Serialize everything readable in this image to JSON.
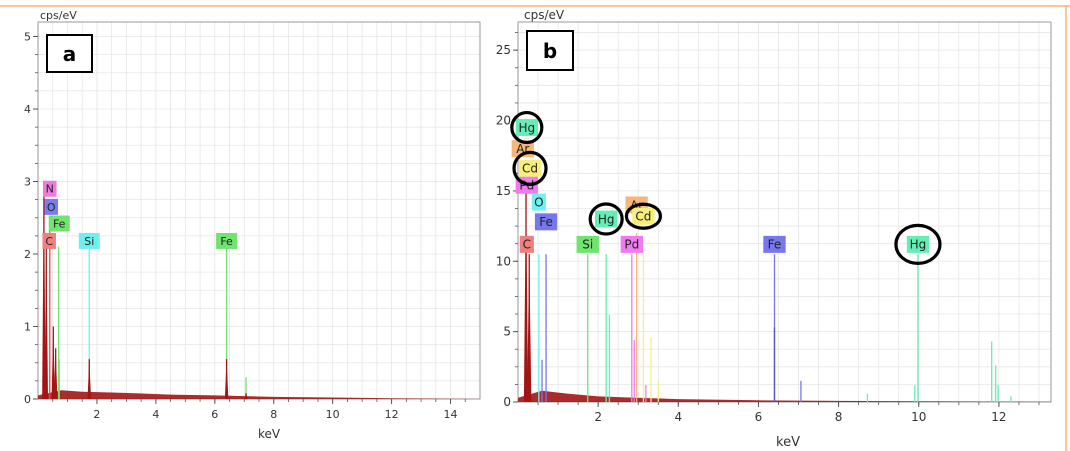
{
  "colors": {
    "frame": "#f5a35a",
    "grid": "#e6e6e6",
    "axis": "#555555",
    "fill": "#a31515",
    "C": "#f08080",
    "N": "#f07ae0",
    "O": "#7b7cf0",
    "Fe": "#6fe46f",
    "Fe_b": "#7676ee",
    "Si": "#6ff0f0",
    "Si_b": "#6fe46f",
    "O_b": "#70f0f0",
    "Hg": "#66eeb5",
    "Cd": "#f8ef7a",
    "Pd": "#f07af0",
    "Ar": "#f5b77a"
  },
  "chart_data": [
    {
      "type": "line",
      "panel": "a",
      "ylabel": "cps/eV",
      "xlabel": "keV",
      "xlim": [
        0,
        15
      ],
      "ylim": [
        0,
        5.2
      ],
      "x_ticks": [
        "2",
        "4",
        "6",
        "8",
        "10",
        "12",
        "14"
      ],
      "x_tick_values": [
        2,
        4,
        6,
        8,
        10,
        12,
        14
      ],
      "y_ticks": [
        "0",
        "1",
        "2",
        "3",
        "4",
        "5"
      ],
      "y_tick_values": [
        0,
        1,
        2,
        3,
        4,
        5
      ],
      "grid": true,
      "peaks": [
        {
          "x": 0.2,
          "y": 3.0,
          "color": "#a31515"
        },
        {
          "x": 0.28,
          "y": 2.2,
          "color": "#a31515"
        },
        {
          "x": 0.4,
          "y": 2.4,
          "color": "#ee4444"
        },
        {
          "x": 0.52,
          "y": 1.0,
          "color": "#a31515"
        },
        {
          "x": 0.6,
          "y": 0.7,
          "color": "#a31515"
        },
        {
          "x": 0.7,
          "y": 2.1,
          "color": "#6fe46f"
        },
        {
          "x": 0.72,
          "y": 0.55,
          "color": "#6fe46f"
        },
        {
          "x": 1.74,
          "y": 2.15,
          "color": "#6ff0f0"
        },
        {
          "x": 1.74,
          "y": 0.55,
          "color": "#a31515"
        },
        {
          "x": 6.4,
          "y": 2.2,
          "color": "#6fe46f"
        },
        {
          "x": 6.4,
          "y": 0.55,
          "color": "#a31515"
        },
        {
          "x": 7.06,
          "y": 0.3,
          "color": "#6fe46f"
        },
        {
          "x": 7.06,
          "y": 0.08,
          "color": "#a31515"
        }
      ],
      "background": [
        [
          0,
          0.05
        ],
        [
          0.8,
          0.12
        ],
        [
          1.5,
          0.1
        ],
        [
          2.5,
          0.09
        ],
        [
          3.3,
          0.08
        ],
        [
          4.5,
          0.06
        ],
        [
          6,
          0.05
        ],
        [
          8,
          0.03
        ],
        [
          10,
          0.02
        ],
        [
          12,
          0.01
        ],
        [
          15,
          0.0
        ]
      ],
      "element_labels": [
        {
          "text": "N",
          "x": 0.4,
          "y": 2.9,
          "color": "#f07ae0"
        },
        {
          "text": "O",
          "x": 0.45,
          "y": 2.65,
          "color": "#7b7cf0"
        },
        {
          "text": "Fe",
          "x": 0.72,
          "y": 2.42,
          "color": "#6fe46f"
        },
        {
          "text": "C",
          "x": 0.38,
          "y": 2.18,
          "color": "#f08080"
        },
        {
          "text": "Si",
          "x": 1.74,
          "y": 2.18,
          "color": "#6ff0f0"
        },
        {
          "text": "Fe",
          "x": 6.4,
          "y": 2.18,
          "color": "#6fe46f"
        }
      ]
    },
    {
      "type": "line",
      "panel": "b",
      "ylabel": "cps/eV",
      "xlabel": "keV",
      "xlim": [
        0,
        13.3
      ],
      "ylim": [
        0,
        27
      ],
      "x_ticks": [
        "2",
        "4",
        "6",
        "8",
        "10",
        "12"
      ],
      "x_tick_values": [
        2,
        4,
        6,
        8,
        10,
        12
      ],
      "y_ticks": [
        "0",
        "5",
        "10",
        "15",
        "20",
        "25"
      ],
      "y_tick_values": [
        0,
        5,
        10,
        15,
        20,
        25
      ],
      "grid": true,
      "peaks": [
        {
          "x": 0.2,
          "y": 15.5,
          "color": "#a31515"
        },
        {
          "x": 0.28,
          "y": 10.5,
          "color": "#a31515"
        },
        {
          "x": 0.52,
          "y": 10.5,
          "color": "#70f0f0"
        },
        {
          "x": 0.6,
          "y": 3.0,
          "color": "#7676ee"
        },
        {
          "x": 0.7,
          "y": 10.5,
          "color": "#7676ee"
        },
        {
          "x": 1.74,
          "y": 10.5,
          "color": "#6fe46f"
        },
        {
          "x": 2.2,
          "y": 10.5,
          "color": "#66eeb5"
        },
        {
          "x": 2.28,
          "y": 6.2,
          "color": "#66eeb5"
        },
        {
          "x": 2.84,
          "y": 10.5,
          "color": "#f07af0"
        },
        {
          "x": 2.9,
          "y": 4.4,
          "color": "#f07af0"
        },
        {
          "x": 2.96,
          "y": 12.0,
          "color": "#f5b77a"
        },
        {
          "x": 3.13,
          "y": 10.8,
          "color": "#f8ef7a"
        },
        {
          "x": 3.19,
          "y": 1.2,
          "color": "#f07af0"
        },
        {
          "x": 3.32,
          "y": 4.6,
          "color": "#f8ef7a"
        },
        {
          "x": 3.5,
          "y": 1.5,
          "color": "#f8ef7a"
        },
        {
          "x": 6.4,
          "y": 10.5,
          "color": "#7676ee"
        },
        {
          "x": 6.4,
          "y": 5.3,
          "color": "#5555cc"
        },
        {
          "x": 7.06,
          "y": 1.5,
          "color": "#7676ee"
        },
        {
          "x": 8.72,
          "y": 0.6,
          "color": "#66eeb5"
        },
        {
          "x": 9.98,
          "y": 10.5,
          "color": "#66eeb5"
        },
        {
          "x": 9.9,
          "y": 1.2,
          "color": "#66eeb5"
        },
        {
          "x": 11.82,
          "y": 4.3,
          "color": "#66eeb5"
        },
        {
          "x": 11.92,
          "y": 2.6,
          "color": "#66eeb5"
        },
        {
          "x": 11.98,
          "y": 1.2,
          "color": "#66eeb5"
        },
        {
          "x": 12.3,
          "y": 0.4,
          "color": "#66eeb5"
        }
      ],
      "background": [
        [
          0,
          0.3
        ],
        [
          0.6,
          0.8
        ],
        [
          1.2,
          0.6
        ],
        [
          2.0,
          0.4
        ],
        [
          3.0,
          0.3
        ],
        [
          4.0,
          0.2
        ],
        [
          6.0,
          0.12
        ],
        [
          8,
          0.08
        ],
        [
          10,
          0.05
        ],
        [
          13.3,
          0.02
        ]
      ],
      "element_labels": [
        {
          "text": "Hg",
          "x": 0.22,
          "y": 19.5,
          "color": "#66eeb5"
        },
        {
          "text": "Ar",
          "x": 0.12,
          "y": 18.0,
          "color": "#f5b77a"
        },
        {
          "text": "Cd",
          "x": 0.3,
          "y": 16.6,
          "color": "#f8ef7a"
        },
        {
          "text": "Pd",
          "x": 0.22,
          "y": 15.4,
          "color": "#f07af0"
        },
        {
          "text": "O",
          "x": 0.52,
          "y": 14.2,
          "color": "#70f0f0"
        },
        {
          "text": "Fe",
          "x": 0.7,
          "y": 12.8,
          "color": "#7676ee"
        },
        {
          "text": "C",
          "x": 0.22,
          "y": 11.2,
          "color": "#f08080"
        },
        {
          "text": "Si",
          "x": 1.74,
          "y": 11.2,
          "color": "#6fe46f"
        },
        {
          "text": "Hg",
          "x": 2.2,
          "y": 13.0,
          "color": "#66eeb5"
        },
        {
          "text": "Ar",
          "x": 2.96,
          "y": 14.0,
          "color": "#f5b77a"
        },
        {
          "text": "Cd",
          "x": 3.13,
          "y": 13.2,
          "color": "#f8ef7a"
        },
        {
          "text": "Pd",
          "x": 2.84,
          "y": 11.2,
          "color": "#f07af0"
        },
        {
          "text": "Fe",
          "x": 6.4,
          "y": 11.2,
          "color": "#7676ee"
        },
        {
          "text": "Hg",
          "x": 9.98,
          "y": 11.2,
          "color": "#66eeb5"
        }
      ],
      "circled": [
        "Hg",
        "Cd",
        "Hg",
        "Cd",
        "Hg"
      ]
    }
  ]
}
